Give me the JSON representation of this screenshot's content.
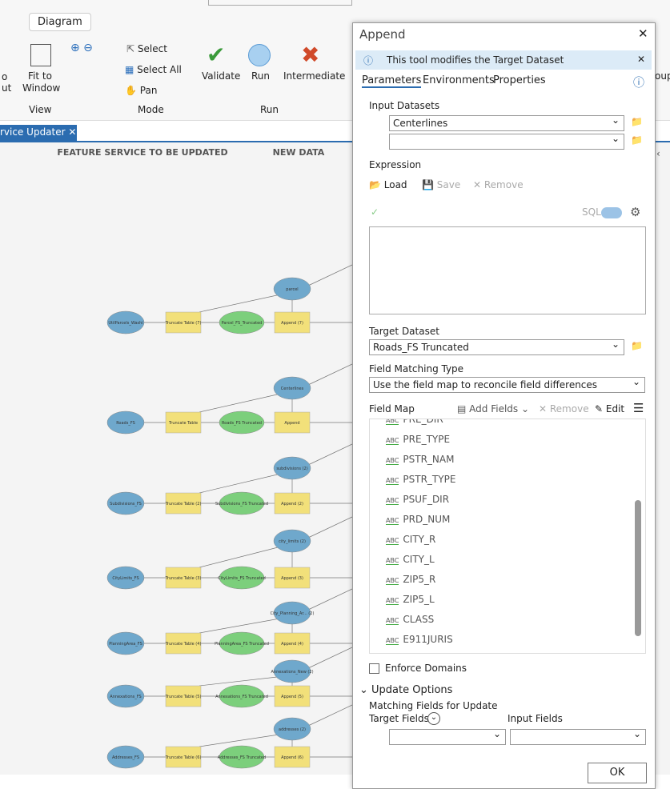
{
  "ribbon": {
    "tab": "Diagram",
    "partial_left": [
      "o",
      "ut"
    ],
    "fit": "Fit to Window",
    "select": "Select",
    "select_all": "Select All",
    "pan": "Pan",
    "validate": "Validate",
    "run": "Run",
    "intermediate": "Intermediate",
    "groups": [
      "View",
      "Mode",
      "Run"
    ],
    "partial_right": "oup"
  },
  "doc_tab": "rvice Updater",
  "canvas": {
    "headers": [
      "FEATURE SERVICE TO BE UPDATED",
      "NEW DATA"
    ],
    "rows": [
      {
        "source": "UtilParcels_Washi",
        "truncate": "Truncate Table (7)",
        "truncated": "Parcel_FS_Truncated",
        "append": "Append (7)",
        "input": "parcel"
      },
      {
        "source": "Roads_FS",
        "truncate": "Truncate Table",
        "truncated": "Roads_FS Truncated",
        "append": "Append",
        "input": "Centerlines"
      },
      {
        "source": "Subdivisions_FS",
        "truncate": "Truncate Table (2)",
        "truncated": "Subdivisions_FS Truncated",
        "append": "Append (2)",
        "input": "subdivisions (2)"
      },
      {
        "source": "CityLimits_FS",
        "truncate": "Truncate Table (3)",
        "truncated": "CityLimits_FS Truncated",
        "append": "Append (3)",
        "input": "city_limits (2)"
      },
      {
        "source": "PlanningArea_FS",
        "truncate": "Truncate Table (4)",
        "truncated": "PlanningArea_FS Truncated",
        "append": "Append (4)",
        "input": "City_Planning_Ar... (2)"
      },
      {
        "source": "Annexations_FS",
        "truncate": "Truncate Table (5)",
        "truncated": "Annexations_FS Truncated",
        "append": "Append (5)",
        "input": "Annexations_New (2)"
      },
      {
        "source": "Addresses_FS",
        "truncate": "Truncate Table (6)",
        "truncated": "Addresses_FS Truncated",
        "append": "Append (6)",
        "input": "addresses (2)"
      }
    ]
  },
  "dialog": {
    "title": "Append",
    "info": "This tool modifies the Target Dataset",
    "tabs": [
      "Parameters",
      "Environments",
      "Properties"
    ],
    "input_datasets": "Input Datasets",
    "input_value": "Centerlines",
    "expression": "Expression",
    "load": "Load",
    "save": "Save",
    "remove": "Remove",
    "sql": "SQL",
    "target_dataset": "Target Dataset",
    "target_value": "Roads_FS Truncated",
    "field_matching_type": "Field Matching Type",
    "matching_value": "Use the field map to reconcile field differences",
    "field_map": "Field Map",
    "add_fields": "Add Fields",
    "remove_field": "Remove",
    "edit": "Edit",
    "field_icon": "ABC",
    "fields": [
      "PRE_DIR",
      "PRE_TYPE",
      "PSTR_NAM",
      "PSTR_TYPE",
      "PSUF_DIR",
      "PRD_NUM",
      "CITY_R",
      "CITY_L",
      "ZIP5_R",
      "ZIP5_L",
      "CLASS",
      "E911JURIS"
    ],
    "enforce_domains": "Enforce Domains",
    "update_options": "Update Options",
    "matching_fields": "Matching Fields for Update",
    "target_fields": "Target Fields",
    "input_fields": "Input Fields",
    "ok": "OK"
  }
}
